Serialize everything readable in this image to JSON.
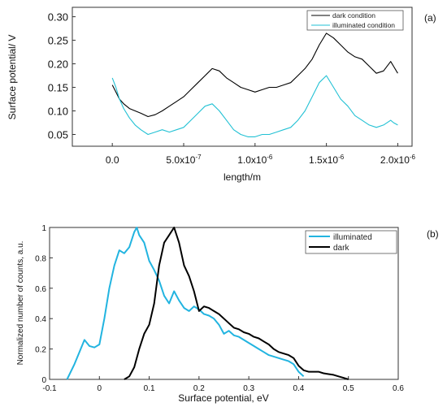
{
  "chart_data": [
    {
      "type": "line",
      "panel_label": "(a)",
      "xlabel": "length/m",
      "ylabel": "Surface potential/ V",
      "xlim": [
        -2.8e-07,
        2.1e-06
      ],
      "ylim": [
        0.025,
        0.32
      ],
      "x_tick_values": [
        0,
        5e-07,
        1e-06,
        1.5e-06,
        2e-06
      ],
      "x_tick_labels": [
        {
          "mantissa": "0.0",
          "exp": ""
        },
        {
          "mantissa": "5.0x10",
          "exp": "-7"
        },
        {
          "mantissa": "1.0x10",
          "exp": "-6"
        },
        {
          "mantissa": "1.5x10",
          "exp": "-6"
        },
        {
          "mantissa": "2.0x10",
          "exp": "-6"
        }
      ],
      "y_ticks": [
        0.05,
        0.1,
        0.15,
        0.2,
        0.25,
        0.3
      ],
      "y_tick_labels": [
        "0.05",
        "0.10",
        "0.15",
        "0.20",
        "0.25",
        "0.30"
      ],
      "legend_position": "top-right",
      "grid": false,
      "series": [
        {
          "name": "dark condition",
          "color": "#000000",
          "x": [
            0,
            2.5e-08,
            5e-08,
            8e-08,
            1.2e-07,
            1.6e-07,
            2e-07,
            2.5e-07,
            3e-07,
            3.5e-07,
            4e-07,
            4.5e-07,
            5e-07,
            5.5e-07,
            6e-07,
            6.5e-07,
            7e-07,
            7.5e-07,
            8e-07,
            8.5e-07,
            9e-07,
            9.5e-07,
            1e-06,
            1.05e-06,
            1.1e-06,
            1.15e-06,
            1.2e-06,
            1.25e-06,
            1.3e-06,
            1.35e-06,
            1.4e-06,
            1.45e-06,
            1.5e-06,
            1.55e-06,
            1.6e-06,
            1.65e-06,
            1.7e-06,
            1.75e-06,
            1.8e-06,
            1.85e-06,
            1.9e-06,
            1.95e-06,
            1.97e-06,
            2e-06
          ],
          "y": [
            0.155,
            0.14,
            0.125,
            0.115,
            0.105,
            0.1,
            0.095,
            0.088,
            0.092,
            0.1,
            0.11,
            0.12,
            0.13,
            0.145,
            0.16,
            0.175,
            0.19,
            0.185,
            0.17,
            0.16,
            0.15,
            0.145,
            0.14,
            0.145,
            0.15,
            0.15,
            0.155,
            0.16,
            0.175,
            0.19,
            0.21,
            0.24,
            0.265,
            0.255,
            0.24,
            0.225,
            0.215,
            0.21,
            0.195,
            0.18,
            0.185,
            0.205,
            0.195,
            0.18
          ]
        },
        {
          "name": "illuminated condition",
          "color": "#22c1d4",
          "x": [
            0,
            2.5e-08,
            5e-08,
            8e-08,
            1.2e-07,
            1.6e-07,
            2e-07,
            2.5e-07,
            3e-07,
            3.5e-07,
            4e-07,
            4.5e-07,
            5e-07,
            5.5e-07,
            6e-07,
            6.5e-07,
            7e-07,
            7.5e-07,
            8e-07,
            8.5e-07,
            9e-07,
            9.5e-07,
            1e-06,
            1.05e-06,
            1.1e-06,
            1.15e-06,
            1.2e-06,
            1.25e-06,
            1.3e-06,
            1.35e-06,
            1.4e-06,
            1.45e-06,
            1.5e-06,
            1.55e-06,
            1.6e-06,
            1.65e-06,
            1.7e-06,
            1.75e-06,
            1.8e-06,
            1.85e-06,
            1.9e-06,
            1.95e-06,
            1.97e-06,
            2e-06
          ],
          "y": [
            0.17,
            0.15,
            0.125,
            0.105,
            0.085,
            0.07,
            0.06,
            0.05,
            0.055,
            0.06,
            0.055,
            0.06,
            0.065,
            0.08,
            0.095,
            0.11,
            0.115,
            0.1,
            0.08,
            0.06,
            0.05,
            0.045,
            0.045,
            0.05,
            0.05,
            0.055,
            0.06,
            0.065,
            0.08,
            0.1,
            0.13,
            0.16,
            0.175,
            0.15,
            0.125,
            0.11,
            0.09,
            0.08,
            0.07,
            0.065,
            0.07,
            0.08,
            0.075,
            0.07
          ]
        }
      ]
    },
    {
      "type": "line",
      "panel_label": "(b)",
      "xlabel": "Surface potential, eV",
      "ylabel": "Normalized number of counts, a.u.",
      "xlim": [
        -0.1,
        0.6
      ],
      "ylim": [
        0,
        1
      ],
      "x_ticks": [
        -0.1,
        0,
        0.1,
        0.2,
        0.3,
        0.4,
        0.5,
        0.6
      ],
      "x_tick_labels": [
        "-0.1",
        "0",
        "0.1",
        "0.2",
        "0.3",
        "0.4",
        "0.5",
        "0.6"
      ],
      "y_ticks": [
        0,
        0.2,
        0.4,
        0.6,
        0.8,
        1
      ],
      "y_tick_labels": [
        "0",
        "0.2",
        "0.4",
        "0.6",
        "0.8",
        "1"
      ],
      "legend_position": "top-right",
      "grid": false,
      "series": [
        {
          "name": "illuminated",
          "color": "#22b4e0",
          "x": [
            -0.065,
            -0.05,
            -0.04,
            -0.03,
            -0.02,
            -0.01,
            0,
            0.01,
            0.02,
            0.03,
            0.04,
            0.05,
            0.06,
            0.07,
            0.075,
            0.08,
            0.09,
            0.1,
            0.11,
            0.12,
            0.13,
            0.14,
            0.15,
            0.16,
            0.17,
            0.18,
            0.19,
            0.2,
            0.21,
            0.22,
            0.23,
            0.24,
            0.25,
            0.26,
            0.27,
            0.28,
            0.29,
            0.3,
            0.31,
            0.32,
            0.33,
            0.34,
            0.35,
            0.36,
            0.37,
            0.38,
            0.39,
            0.4,
            0.41
          ],
          "y": [
            0,
            0.1,
            0.18,
            0.26,
            0.22,
            0.21,
            0.23,
            0.4,
            0.6,
            0.75,
            0.85,
            0.83,
            0.87,
            0.97,
            1,
            0.95,
            0.9,
            0.78,
            0.72,
            0.65,
            0.55,
            0.5,
            0.58,
            0.52,
            0.47,
            0.45,
            0.48,
            0.46,
            0.43,
            0.42,
            0.4,
            0.36,
            0.3,
            0.32,
            0.29,
            0.28,
            0.26,
            0.24,
            0.22,
            0.2,
            0.18,
            0.16,
            0.15,
            0.14,
            0.13,
            0.12,
            0.1,
            0.05,
            0.02
          ]
        },
        {
          "name": "dark",
          "color": "#000000",
          "x": [
            0.05,
            0.06,
            0.07,
            0.08,
            0.09,
            0.1,
            0.11,
            0.12,
            0.13,
            0.14,
            0.15,
            0.16,
            0.17,
            0.18,
            0.19,
            0.2,
            0.21,
            0.22,
            0.23,
            0.24,
            0.25,
            0.26,
            0.27,
            0.28,
            0.29,
            0.3,
            0.31,
            0.32,
            0.33,
            0.34,
            0.35,
            0.36,
            0.37,
            0.38,
            0.39,
            0.4,
            0.41,
            0.42,
            0.43,
            0.44,
            0.45,
            0.46,
            0.47,
            0.48,
            0.49,
            0.5
          ],
          "y": [
            0,
            0.02,
            0.08,
            0.2,
            0.3,
            0.36,
            0.5,
            0.75,
            0.9,
            0.95,
            1,
            0.9,
            0.75,
            0.68,
            0.58,
            0.45,
            0.48,
            0.47,
            0.45,
            0.43,
            0.4,
            0.37,
            0.34,
            0.33,
            0.31,
            0.3,
            0.28,
            0.27,
            0.25,
            0.23,
            0.2,
            0.18,
            0.17,
            0.16,
            0.14,
            0.09,
            0.06,
            0.05,
            0.05,
            0.05,
            0.04,
            0.035,
            0.03,
            0.02,
            0.01,
            0
          ]
        }
      ]
    }
  ]
}
